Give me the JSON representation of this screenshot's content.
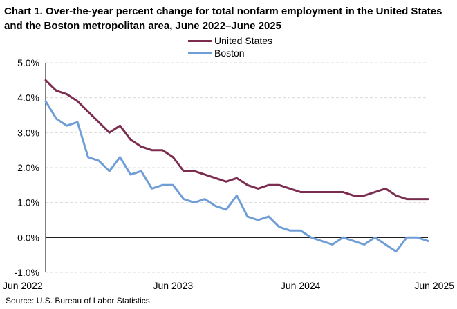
{
  "chart_data": {
    "type": "line",
    "title": "Chart 1. Over-the-year percent change for total nonfarm employment in the United States and the Boston metropolitan area, June 2022–June 2025",
    "xlabel": "",
    "ylabel": "",
    "x_tick_labels": [
      "Jun 2022",
      "Jun 2023",
      "Jun 2024",
      "Jun 2025"
    ],
    "y_tick_labels": [
      "5.0%",
      "4.0%",
      "3.0%",
      "2.0%",
      "1.0%",
      "0.0%",
      "-1.0%"
    ],
    "y_ticks": [
      5,
      4,
      3,
      2,
      1,
      0,
      -1
    ],
    "ylim": [
      -1,
      5
    ],
    "n_points": 37,
    "grid": true,
    "legend_position": "top",
    "series": [
      {
        "name": "United States",
        "color": "#7b2c4f",
        "values": [
          4.5,
          4.2,
          4.1,
          3.9,
          3.6,
          3.3,
          3.0,
          3.2,
          2.8,
          2.6,
          2.5,
          2.5,
          2.3,
          1.9,
          1.9,
          1.8,
          1.7,
          1.6,
          1.7,
          1.5,
          1.4,
          1.5,
          1.5,
          1.4,
          1.3,
          1.3,
          1.3,
          1.3,
          1.3,
          1.2,
          1.2,
          1.3,
          1.4,
          1.2,
          1.1,
          1.1,
          1.1
        ]
      },
      {
        "name": "Boston",
        "color": "#6f9ed6",
        "values": [
          3.9,
          3.4,
          3.2,
          3.3,
          2.3,
          2.2,
          1.9,
          2.3,
          1.8,
          1.9,
          1.4,
          1.5,
          1.5,
          1.1,
          1.0,
          1.1,
          0.9,
          0.8,
          1.2,
          0.6,
          0.5,
          0.6,
          0.3,
          0.2,
          0.2,
          0.0,
          -0.1,
          -0.2,
          0.0,
          -0.1,
          -0.2,
          0.0,
          -0.2,
          -0.4,
          0.0,
          0.0,
          -0.1
        ]
      }
    ]
  },
  "source": "Source: U.S. Bureau of Labor Statistics."
}
